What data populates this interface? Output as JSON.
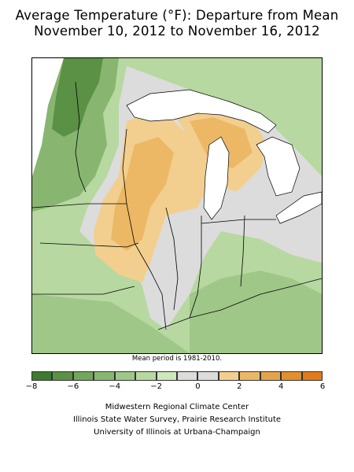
{
  "title_line1": "Average Temperature (°F): Departure from Mean",
  "title_line2": "November 10, 2012 to November 16, 2012",
  "mean_note": "Mean period is 1981-2010.",
  "legend": {
    "ticks": [
      "−8",
      "−6",
      "−4",
      "−2",
      "0",
      "2",
      "4",
      "6"
    ],
    "bins": [
      {
        "from": -8,
        "to": -7,
        "color": "#3f7a2f"
      },
      {
        "from": -7,
        "to": -6,
        "color": "#5a9145"
      },
      {
        "from": -6,
        "to": -5,
        "color": "#72a65c"
      },
      {
        "from": -5,
        "to": -4,
        "color": "#88b670"
      },
      {
        "from": -4,
        "to": -3,
        "color": "#9fc788"
      },
      {
        "from": -3,
        "to": -2,
        "color": "#b7d8a0"
      },
      {
        "from": -2,
        "to": -1,
        "color": "#cfe8ba"
      },
      {
        "from": -1,
        "to": 0,
        "color": "#dcdcdc"
      },
      {
        "from": 0,
        "to": 1,
        "color": "#dcdcdc"
      },
      {
        "from": 1,
        "to": 2,
        "color": "#f2cf8e"
      },
      {
        "from": 2,
        "to": 3,
        "color": "#ecb866"
      },
      {
        "from": 3,
        "to": 4,
        "color": "#e6a44a"
      },
      {
        "from": 4,
        "to": 5,
        "color": "#e38f2e"
      },
      {
        "from": 5,
        "to": 6,
        "color": "#e07b18"
      }
    ]
  },
  "colors": {
    "lakes": "#ffffff",
    "borders": "#000000"
  },
  "credits": [
    "Midwestern Regional Climate Center",
    "Illinois State Water Survey, Prairie Research Institute",
    "University of Illinois at Urbana-Champaign"
  ]
}
